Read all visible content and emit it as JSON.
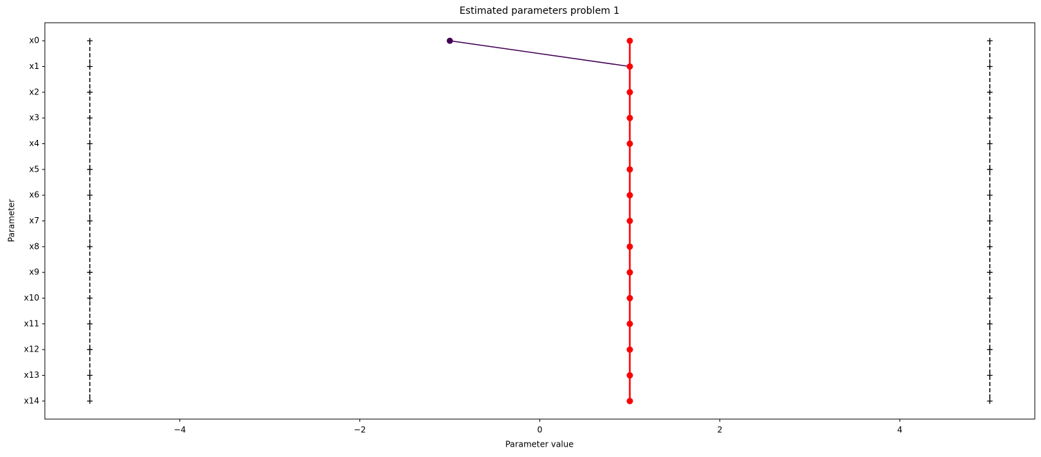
{
  "chart_data": {
    "type": "line",
    "title": "Estimated parameters problem 1",
    "x_label": "Parameter value",
    "y_label": "Parameter",
    "categories": [
      "x0",
      "x1",
      "x2",
      "x3",
      "x4",
      "x5",
      "x6",
      "x7",
      "x8",
      "x9",
      "x10",
      "x11",
      "x12",
      "x13",
      "x14"
    ],
    "xlim": [
      -5.5,
      5.5
    ],
    "xticks": [
      {
        "value": -4,
        "label": "−4"
      },
      {
        "value": -2,
        "label": "−2"
      },
      0,
      2,
      4
    ],
    "series": [
      {
        "color": "#000000",
        "dash": true,
        "marker": "plus",
        "width": 1.5,
        "values": [
          -5,
          -5,
          -5,
          -5,
          -5,
          -5,
          -5,
          -5,
          -5,
          -5,
          -5,
          -5,
          -5,
          -5,
          -5
        ]
      },
      {
        "color": "#000000",
        "dash": true,
        "marker": "plus",
        "width": 1.5,
        "values": [
          5,
          5,
          5,
          5,
          5,
          5,
          5,
          5,
          5,
          5,
          5,
          5,
          5,
          5,
          5
        ]
      },
      {
        "color": "#440154",
        "dash": false,
        "marker": "circle",
        "width": 1.5,
        "values": [
          -1,
          1,
          1,
          1,
          1,
          1,
          1,
          1,
          1,
          1,
          1,
          1,
          1,
          1,
          1
        ]
      },
      {
        "color": "#ff0000",
        "dash": false,
        "marker": "circle",
        "width": 2.5,
        "values": [
          1,
          1,
          1,
          1,
          1,
          1,
          1,
          1,
          1,
          1,
          1,
          1,
          1,
          1,
          1
        ]
      }
    ]
  }
}
